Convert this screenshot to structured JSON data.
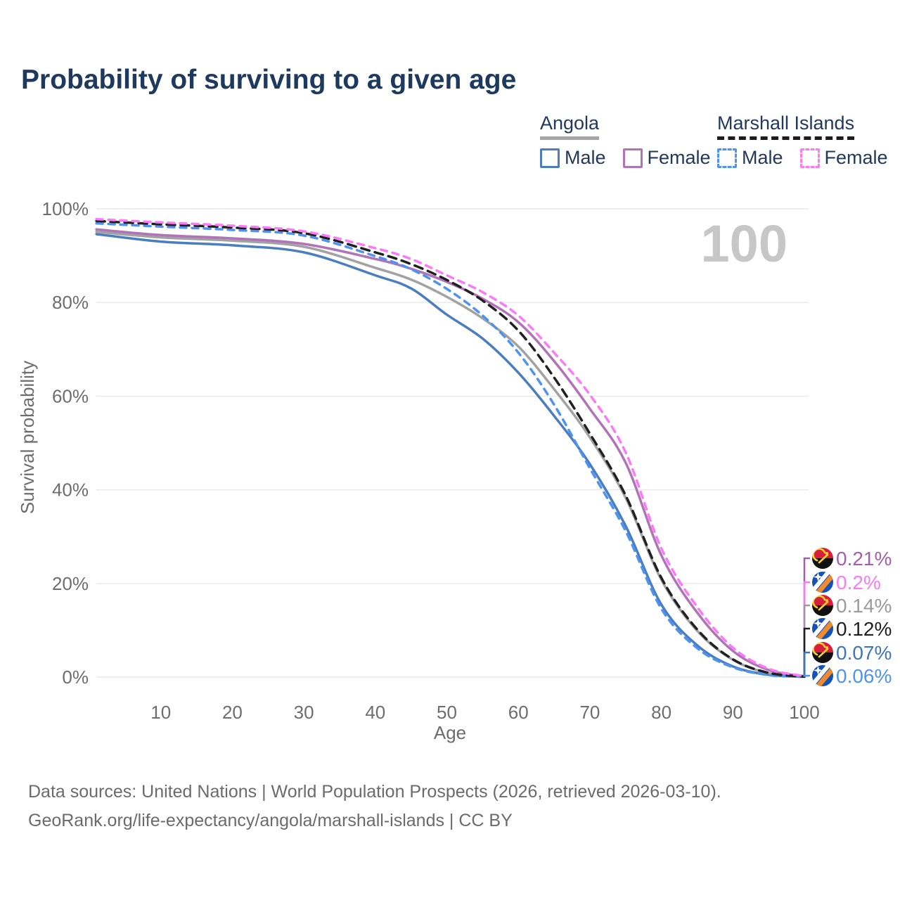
{
  "header": {
    "title": "Probability of surviving to a given age"
  },
  "legend": {
    "groups": [
      {
        "label": "Angola",
        "line_style": "solid",
        "line_color": "#a6a6a6",
        "items": [
          {
            "label": "Male",
            "color": "#4a7ebf",
            "style": "solid"
          },
          {
            "label": "Female",
            "color": "#b173b8",
            "style": "solid"
          }
        ]
      },
      {
        "label": "Marshall Islands",
        "line_style": "dashed",
        "line_color": "#1c1c1c",
        "items": [
          {
            "label": "Male",
            "color": "#4f93f2",
            "style": "dashed"
          },
          {
            "label": "Female",
            "color": "#fb7bf6",
            "style": "dashed"
          }
        ]
      }
    ]
  },
  "watermark": "100",
  "chart_data": {
    "type": "line",
    "title": "Probability of surviving to a given age",
    "xlabel": "Age",
    "ylabel": "Survival probability",
    "xlim": [
      1,
      100
    ],
    "ylim": [
      0,
      100
    ],
    "grid": "horizontal",
    "legend_position": "top-right",
    "x_ticks": [
      10,
      20,
      30,
      40,
      50,
      60,
      70,
      80,
      90,
      100
    ],
    "y_ticks": [
      {
        "value": 0,
        "label": "0%"
      },
      {
        "value": 20,
        "label": "20%"
      },
      {
        "value": 40,
        "label": "40%"
      },
      {
        "value": 60,
        "label": "60%"
      },
      {
        "value": 80,
        "label": "80%"
      },
      {
        "value": 100,
        "label": "100%"
      }
    ],
    "ages": [
      1,
      10,
      20,
      30,
      40,
      45,
      50,
      55,
      60,
      65,
      70,
      75,
      80,
      85,
      90,
      95,
      100
    ],
    "series": [
      {
        "name": "Angola Male",
        "country": "Angola",
        "sex": "Male",
        "color": "#4a7ebf",
        "dashed": false,
        "flag": "angola",
        "end_label": "0.07%",
        "end_label_color": "#3f74bd",
        "end_value": 0.07,
        "values": [
          94.6,
          93.0,
          92.2,
          90.7,
          85.8,
          83.0,
          77.4,
          72.3,
          65.0,
          55.8,
          45.5,
          32.3,
          15.5,
          6.8,
          2.3,
          0.5,
          0.07
        ]
      },
      {
        "name": "Angola Both sexes",
        "country": "Angola",
        "sex": "Both",
        "color": "#a2a2a2",
        "dashed": false,
        "flag": "angola",
        "end_label": "0.14%",
        "end_label_color": "#9b9b9b",
        "end_value": 0.14,
        "values": [
          95.1,
          93.9,
          93.2,
          91.9,
          87.4,
          84.9,
          81.2,
          76.6,
          70.6,
          61.5,
          51.2,
          38.3,
          20.8,
          9.9,
          3.7,
          0.85,
          0.14
        ]
      },
      {
        "name": "Angola Female",
        "country": "Angola",
        "sex": "Female",
        "color": "#b173b8",
        "dashed": false,
        "flag": "angola",
        "end_label": "0.21%",
        "end_label_color": "#a35fab",
        "end_value": 0.21,
        "values": [
          95.6,
          94.4,
          93.7,
          92.5,
          89.3,
          87.2,
          84.4,
          80.8,
          75.8,
          67.5,
          57.3,
          45.8,
          26.0,
          13.8,
          5.6,
          1.5,
          0.21
        ]
      },
      {
        "name": "Marshall Islands Male",
        "country": "Marshall Islands",
        "sex": "Male",
        "color": "#4f93f2",
        "dashed": true,
        "flag": "marshall-islands",
        "end_label": "0.06%",
        "end_label_color": "#4f93f2",
        "end_value": 0.06,
        "values": [
          96.9,
          96.2,
          95.5,
          94.3,
          89.9,
          87.1,
          82.9,
          77.2,
          69.3,
          58.2,
          44.6,
          31.2,
          14.6,
          6.2,
          2.1,
          0.45,
          0.06
        ]
      },
      {
        "name": "Marshall Islands Both sexes",
        "country": "Marshall Islands",
        "sex": "Both",
        "color": "#202020",
        "dashed": true,
        "flag": "marshall-islands",
        "end_label": "0.12%",
        "end_label_color": "#1f1f1f",
        "end_value": 0.12,
        "values": [
          97.4,
          96.7,
          96.0,
          94.8,
          90.7,
          88.2,
          84.8,
          80.4,
          74.0,
          64.0,
          52.0,
          38.8,
          21.2,
          10.2,
          3.8,
          0.9,
          0.12
        ]
      },
      {
        "name": "Marshall Islands Female",
        "country": "Marshall Islands",
        "sex": "Female",
        "color": "#fb7bf6",
        "dashed": true,
        "flag": "marshall-islands",
        "end_label": "0.2%",
        "end_label_color": "#fb7bf6",
        "end_value": 0.2,
        "values": [
          97.8,
          97.1,
          96.4,
          95.2,
          91.6,
          89.3,
          85.8,
          82.2,
          77.2,
          69.3,
          60.3,
          48.0,
          27.5,
          15.0,
          6.3,
          1.8,
          0.2
        ]
      }
    ],
    "flag_colors": {
      "angola": {
        "top": "#d6203b",
        "bottom": "#111111",
        "emblem": "#f8d12e"
      },
      "marshall_islands": {
        "field": "#1452b8",
        "stripe1": "#ffffff",
        "stripe2": "#ef8b2d",
        "star": "#ffffff"
      }
    }
  },
  "footer": {
    "line1": "Data sources: United Nations | World Population Prospects (2026, retrieved 2026-03-10).",
    "line2": "GeoRank.org/life-expectancy/angola/marshall-islands | CC BY"
  }
}
